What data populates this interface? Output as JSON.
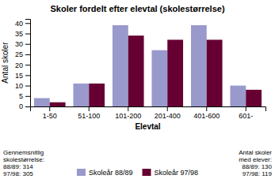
{
  "chart_data": {
    "type": "bar",
    "title": "Skoler fordelt efter elevtal (skolestørrelse)",
    "categories": [
      "1-50",
      "51-100",
      "101-200",
      "201-400",
      "401-600",
      "601-"
    ],
    "series": [
      {
        "name": "Skoleår 88/89",
        "color": "#9999cc",
        "values": [
          4,
          11,
          39,
          27,
          39,
          10
        ]
      },
      {
        "name": "Skoleår 97/98",
        "color": "#660033",
        "values": [
          2,
          11,
          34,
          32,
          32,
          8
        ]
      }
    ],
    "xlabel": "Elevtal",
    "ylabel": "Antal skoler",
    "ylim": [
      0,
      42
    ],
    "yticks": [
      0,
      5,
      10,
      15,
      20,
      25,
      30,
      35,
      40
    ],
    "legend": "bottom",
    "annotations": [
      "Gennemsnitlig\nskolestørrelse:\n88/89: 314\n97/98: 305",
      "Antal skoler\nmed elever:\n88/89: 130\n97/98: 119"
    ]
  }
}
